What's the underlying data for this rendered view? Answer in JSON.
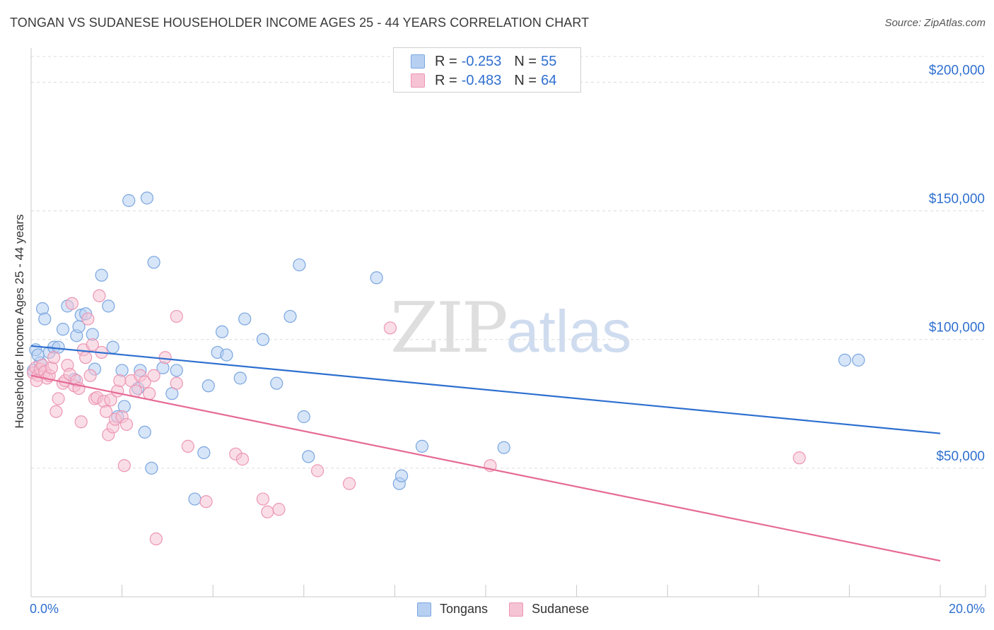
{
  "title": "TONGAN VS SUDANESE HOUSEHOLDER INCOME AGES 25 - 44 YEARS CORRELATION CHART",
  "source": "Source: ZipAtlas.com",
  "watermark": {
    "zip": "ZIP",
    "atlas": "atlas"
  },
  "legend_top": {
    "rows": [
      {
        "r_label": "R =",
        "r_value": "-0.253",
        "n_label": "N =",
        "n_value": "55"
      },
      {
        "r_label": "R =",
        "r_value": "-0.483",
        "n_label": "N =",
        "n_value": "64"
      }
    ]
  },
  "colors": {
    "tongan_fill": "#b7d0f2",
    "tongan_stroke": "#7aa6e0",
    "tongan_line": "#2d6fcf",
    "sudanese_fill": "#f6c3d4",
    "sudanese_stroke": "#ec96b3",
    "sudanese_line": "#e66a96",
    "axis_text": "#2f6fcf",
    "grid": "#dcdcdc"
  },
  "chart_data": {
    "type": "scatter",
    "title": "TONGAN VS SUDANESE HOUSEHOLDER INCOME AGES 25 - 44 YEARS CORRELATION CHART",
    "xlabel": "",
    "ylabel": "Householder Income Ages 25 - 44 years",
    "x_unit": "percent",
    "xlim": [
      0,
      20
    ],
    "ylim": [
      0,
      210000
    ],
    "x_tick_labels": [
      "0.0%",
      "20.0%"
    ],
    "y_ticks": [
      50000,
      100000,
      150000,
      200000
    ],
    "y_tick_labels": [
      "$50,000",
      "$100,000",
      "$150,000",
      "$200,000"
    ],
    "grid": true,
    "legend": [
      "Tongans",
      "Sudanese"
    ],
    "series": [
      {
        "name": "Tongans",
        "r": -0.253,
        "n": 55,
        "trend": {
          "x": [
            0,
            20
          ],
          "y": [
            97500,
            63500
          ]
        },
        "points": [
          [
            0.1,
            96000
          ],
          [
            0.2,
            91000
          ],
          [
            0.25,
            112000
          ],
          [
            0.3,
            108000
          ],
          [
            0.4,
            95000
          ],
          [
            0.5,
            97000
          ],
          [
            0.6,
            97000
          ],
          [
            0.7,
            104000
          ],
          [
            0.8,
            113000
          ],
          [
            0.95,
            84500
          ],
          [
            1.0,
            101500
          ],
          [
            1.05,
            105000
          ],
          [
            1.1,
            109500
          ],
          [
            1.2,
            110000
          ],
          [
            1.35,
            102000
          ],
          [
            1.4,
            88500
          ],
          [
            1.55,
            125000
          ],
          [
            1.7,
            113000
          ],
          [
            1.8,
            97000
          ],
          [
            1.9,
            70000
          ],
          [
            2.0,
            88000
          ],
          [
            2.05,
            74000
          ],
          [
            2.15,
            154000
          ],
          [
            2.35,
            81000
          ],
          [
            2.4,
            88000
          ],
          [
            2.5,
            64000
          ],
          [
            2.55,
            155000
          ],
          [
            2.65,
            50000
          ],
          [
            2.7,
            130000
          ],
          [
            2.9,
            89000
          ],
          [
            3.1,
            79000
          ],
          [
            3.2,
            88000
          ],
          [
            3.6,
            38000
          ],
          [
            3.8,
            56000
          ],
          [
            3.9,
            82000
          ],
          [
            4.1,
            95000
          ],
          [
            4.2,
            103000
          ],
          [
            4.3,
            94000
          ],
          [
            4.6,
            85000
          ],
          [
            4.7,
            108000
          ],
          [
            5.1,
            100000
          ],
          [
            5.4,
            83000
          ],
          [
            5.7,
            109000
          ],
          [
            5.9,
            129000
          ],
          [
            6.0,
            70000
          ],
          [
            6.1,
            54500
          ],
          [
            7.6,
            124000
          ],
          [
            8.1,
            44000
          ],
          [
            8.15,
            47000
          ],
          [
            8.6,
            58500
          ],
          [
            10.4,
            58000
          ],
          [
            17.9,
            92000
          ],
          [
            18.2,
            92000
          ],
          [
            0.05,
            88000
          ],
          [
            0.15,
            94000
          ]
        ]
      },
      {
        "name": "Sudanese",
        "r": -0.483,
        "n": 64,
        "trend": {
          "x": [
            0,
            20
          ],
          "y": [
            86000,
            14000
          ]
        },
        "points": [
          [
            0.05,
            87000
          ],
          [
            0.1,
            89000
          ],
          [
            0.15,
            86000
          ],
          [
            0.2,
            88500
          ],
          [
            0.25,
            90000
          ],
          [
            0.3,
            87500
          ],
          [
            0.35,
            85000
          ],
          [
            0.4,
            86000
          ],
          [
            0.45,
            89000
          ],
          [
            0.5,
            93000
          ],
          [
            0.55,
            72000
          ],
          [
            0.6,
            77000
          ],
          [
            0.7,
            83000
          ],
          [
            0.75,
            84000
          ],
          [
            0.8,
            90000
          ],
          [
            0.85,
            86500
          ],
          [
            0.9,
            114000
          ],
          [
            0.95,
            82000
          ],
          [
            1.0,
            84000
          ],
          [
            1.05,
            81000
          ],
          [
            1.1,
            68000
          ],
          [
            1.15,
            96000
          ],
          [
            1.2,
            93000
          ],
          [
            1.25,
            108000
          ],
          [
            1.3,
            86000
          ],
          [
            1.35,
            98000
          ],
          [
            1.4,
            77000
          ],
          [
            1.45,
            77500
          ],
          [
            1.5,
            117000
          ],
          [
            1.55,
            95000
          ],
          [
            1.6,
            76000
          ],
          [
            1.65,
            72000
          ],
          [
            1.7,
            63000
          ],
          [
            1.75,
            76500
          ],
          [
            1.8,
            66000
          ],
          [
            1.85,
            69000
          ],
          [
            1.9,
            80000
          ],
          [
            1.95,
            84000
          ],
          [
            2.0,
            70000
          ],
          [
            2.05,
            51000
          ],
          [
            2.1,
            67000
          ],
          [
            2.2,
            84000
          ],
          [
            2.3,
            80000
          ],
          [
            2.4,
            86000
          ],
          [
            2.5,
            83500
          ],
          [
            2.6,
            79000
          ],
          [
            2.7,
            86000
          ],
          [
            2.75,
            22500
          ],
          [
            2.95,
            93000
          ],
          [
            3.2,
            109000
          ],
          [
            3.2,
            83000
          ],
          [
            3.45,
            58500
          ],
          [
            3.85,
            37000
          ],
          [
            4.5,
            55500
          ],
          [
            4.65,
            53500
          ],
          [
            5.1,
            38000
          ],
          [
            5.2,
            33000
          ],
          [
            5.45,
            34000
          ],
          [
            6.3,
            49000
          ],
          [
            7.0,
            44000
          ],
          [
            7.9,
            104500
          ],
          [
            10.1,
            51000
          ],
          [
            16.9,
            54000
          ],
          [
            0.12,
            84000
          ]
        ]
      }
    ]
  },
  "bottom_legend": {
    "items": [
      "Tongans",
      "Sudanese"
    ]
  }
}
